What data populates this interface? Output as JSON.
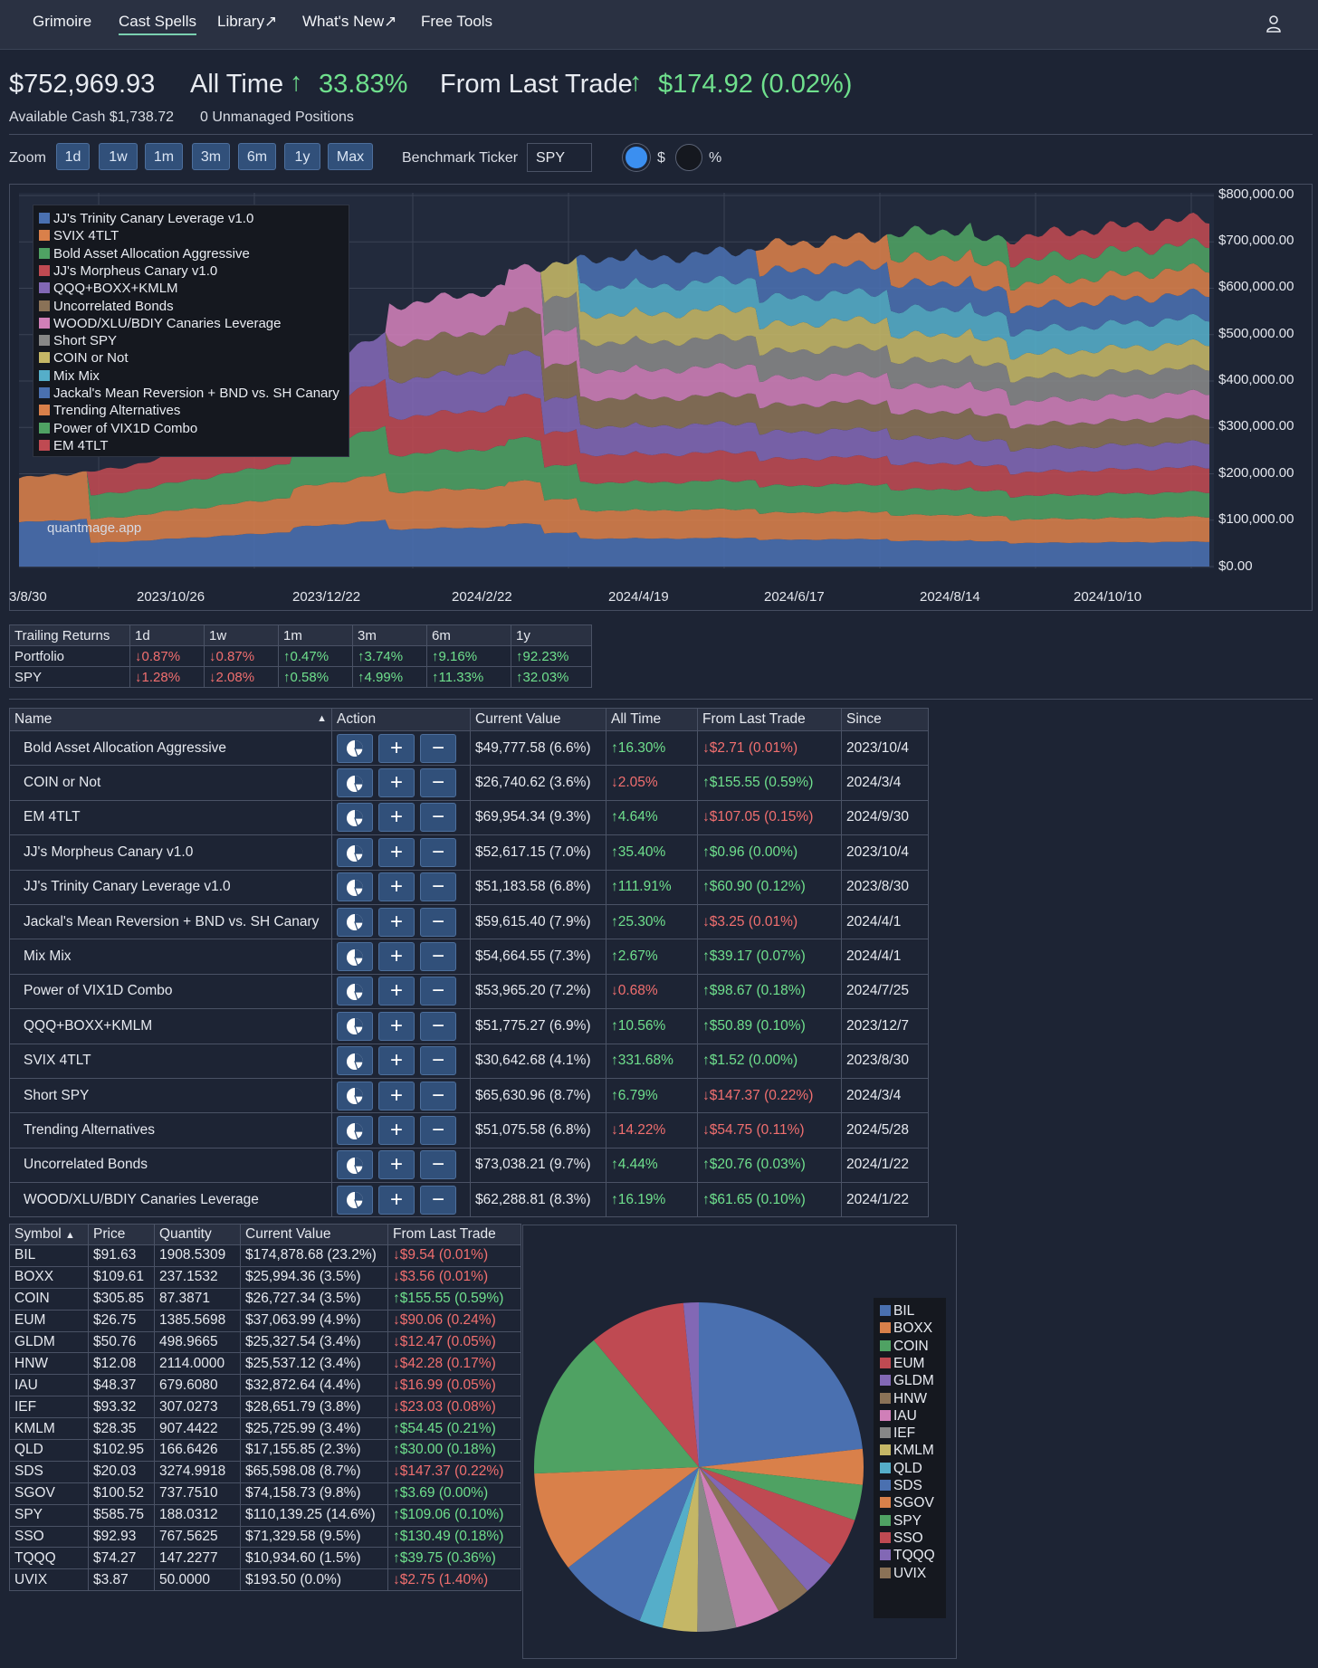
{
  "nav": {
    "brand": "Grimoire",
    "items": [
      "Cast Spells",
      "Library↗",
      "What's New↗",
      "Free Tools"
    ]
  },
  "summary": {
    "total_value": "$752,969.93",
    "all_time_label": "All Time",
    "all_time_value": "33.83%",
    "last_trade_label": "From Last Trade",
    "last_trade_value": "$174.92 (0.02%)",
    "available_cash": "Available Cash $1,738.72",
    "unmanaged": "0 Unmanaged Positions"
  },
  "controls": {
    "zoom_label": "Zoom",
    "zoom_options": [
      "1d",
      "1w",
      "1m",
      "3m",
      "6m",
      "1y",
      "Max"
    ],
    "benchmark_label": "Benchmark Ticker",
    "benchmark_value": "SPY",
    "radio_dollar": "$",
    "radio_percent": "%"
  },
  "chart_data": {
    "type": "area",
    "stacked": true,
    "watermark": "quantmage.app",
    "y_ticks": [
      "$800,000.00",
      "$700,000.00",
      "$600,000.00",
      "$500,000.00",
      "$400,000.00",
      "$300,000.00",
      "$200,000.00",
      "$100,000.00",
      "$0.00"
    ],
    "x_ticks": [
      "3/8/30",
      "2023/10/26",
      "2023/12/22",
      "2024/2/22",
      "2024/4/19",
      "2024/6/17",
      "2024/8/14",
      "2024/10/10"
    ],
    "ylim": [
      0,
      800000
    ],
    "legend_position": "top-left",
    "series": [
      {
        "name": "JJ's Trinity Canary Leverage v1.0",
        "color": "#4a70b0"
      },
      {
        "name": "SVIX 4TLT",
        "color": "#d9804a"
      },
      {
        "name": "Bold Asset Allocation Aggressive",
        "color": "#4fa263"
      },
      {
        "name": "JJ's Morpheus Canary v1.0",
        "color": "#bf4a52"
      },
      {
        "name": "QQQ+BOXX+KMLM",
        "color": "#8268b5"
      },
      {
        "name": "Uncorrelated Bonds",
        "color": "#8a7257"
      },
      {
        "name": "WOOD/XLU/BDIY Canaries Leverage",
        "color": "#d07fb8"
      },
      {
        "name": "Short SPY",
        "color": "#878787"
      },
      {
        "name": "COIN or Not",
        "color": "#c5b766"
      },
      {
        "name": "Mix Mix",
        "color": "#55aec9"
      },
      {
        "name": "Jackal's Mean Reversion + BND vs. SH Canary",
        "color": "#4a70b0"
      },
      {
        "name": "Trending Alternatives",
        "color": "#d9804a"
      },
      {
        "name": "Power of VIX1D Combo",
        "color": "#4fa263"
      },
      {
        "name": "EM 4TLT",
        "color": "#bf4a52"
      }
    ]
  },
  "trailing": {
    "headers": [
      "Trailing Returns",
      "1d",
      "1w",
      "1m",
      "3m",
      "6m",
      "1y"
    ],
    "rows": [
      {
        "label": "Portfolio",
        "cells": [
          {
            "v": "0.87%",
            "d": "down"
          },
          {
            "v": "0.87%",
            "d": "down"
          },
          {
            "v": "0.47%",
            "d": "up"
          },
          {
            "v": "3.74%",
            "d": "up"
          },
          {
            "v": "9.16%",
            "d": "up"
          },
          {
            "v": "92.23%",
            "d": "up"
          }
        ]
      },
      {
        "label": "SPY",
        "cells": [
          {
            "v": "1.28%",
            "d": "down"
          },
          {
            "v": "2.08%",
            "d": "down"
          },
          {
            "v": "0.58%",
            "d": "up"
          },
          {
            "v": "4.99%",
            "d": "up"
          },
          {
            "v": "11.33%",
            "d": "up"
          },
          {
            "v": "32.03%",
            "d": "up"
          }
        ]
      }
    ]
  },
  "positions": {
    "headers": [
      "Name",
      "Action",
      "Current Value",
      "All Time",
      "From Last Trade",
      "Since"
    ],
    "sort_indicator": "▲",
    "rows": [
      {
        "name": "Bold Asset Allocation Aggressive",
        "value": "$49,777.58 (6.6%)",
        "all_time": "16.30%",
        "at_dir": "up",
        "last": "$2.71 (0.01%)",
        "lt_dir": "down",
        "since": "2023/10/4"
      },
      {
        "name": "COIN or Not",
        "value": "$26,740.62 (3.6%)",
        "all_time": "2.05%",
        "at_dir": "down",
        "last": "$155.55 (0.59%)",
        "lt_dir": "up",
        "since": "2024/3/4"
      },
      {
        "name": "EM 4TLT",
        "value": "$69,954.34 (9.3%)",
        "all_time": "4.64%",
        "at_dir": "up",
        "last": "$107.05 (0.15%)",
        "lt_dir": "down",
        "since": "2024/9/30"
      },
      {
        "name": "JJ's Morpheus Canary v1.0",
        "value": "$52,617.15 (7.0%)",
        "all_time": "35.40%",
        "at_dir": "up",
        "last": "$0.96 (0.00%)",
        "lt_dir": "up",
        "since": "2023/10/4"
      },
      {
        "name": "JJ's Trinity Canary Leverage v1.0",
        "value": "$51,183.58 (6.8%)",
        "all_time": "111.91%",
        "at_dir": "up",
        "last": "$60.90 (0.12%)",
        "lt_dir": "up",
        "since": "2023/8/30"
      },
      {
        "name": "Jackal's Mean Reversion + BND vs. SH Canary",
        "value": "$59,615.40 (7.9%)",
        "all_time": "25.30%",
        "at_dir": "up",
        "last": "$3.25 (0.01%)",
        "lt_dir": "down",
        "since": "2024/4/1"
      },
      {
        "name": "Mix Mix",
        "value": "$54,664.55 (7.3%)",
        "all_time": "2.67%",
        "at_dir": "up",
        "last": "$39.17 (0.07%)",
        "lt_dir": "up",
        "since": "2024/4/1"
      },
      {
        "name": "Power of VIX1D Combo",
        "value": "$53,965.20 (7.2%)",
        "all_time": "0.68%",
        "at_dir": "down",
        "last": "$98.67 (0.18%)",
        "lt_dir": "up",
        "since": "2024/7/25"
      },
      {
        "name": "QQQ+BOXX+KMLM",
        "value": "$51,775.27 (6.9%)",
        "all_time": "10.56%",
        "at_dir": "up",
        "last": "$50.89 (0.10%)",
        "lt_dir": "up",
        "since": "2023/12/7"
      },
      {
        "name": "SVIX 4TLT",
        "value": "$30,642.68 (4.1%)",
        "all_time": "331.68%",
        "at_dir": "up",
        "last": "$1.52 (0.00%)",
        "lt_dir": "up",
        "since": "2023/8/30"
      },
      {
        "name": "Short SPY",
        "value": "$65,630.96 (8.7%)",
        "all_time": "6.79%",
        "at_dir": "up",
        "last": "$147.37 (0.22%)",
        "lt_dir": "down",
        "since": "2024/3/4"
      },
      {
        "name": "Trending Alternatives",
        "value": "$51,075.58 (6.8%)",
        "all_time": "14.22%",
        "at_dir": "down",
        "last": "$54.75 (0.11%)",
        "lt_dir": "down",
        "since": "2024/5/28"
      },
      {
        "name": "Uncorrelated Bonds",
        "value": "$73,038.21 (9.7%)",
        "all_time": "4.44%",
        "at_dir": "up",
        "last": "$20.76 (0.03%)",
        "lt_dir": "up",
        "since": "2024/1/22"
      },
      {
        "name": "WOOD/XLU/BDIY Canaries Leverage",
        "value": "$62,288.81 (8.3%)",
        "all_time": "16.19%",
        "at_dir": "up",
        "last": "$61.65 (0.10%)",
        "lt_dir": "up",
        "since": "2024/1/22"
      }
    ]
  },
  "symbols": {
    "headers": [
      "Symbol",
      "Price",
      "Quantity",
      "Current Value",
      "From Last Trade"
    ],
    "sort_indicator": "▲",
    "rows": [
      {
        "sym": "BIL",
        "price": "$91.63",
        "qty": "1908.5309",
        "value": "$174,878.68 (23.2%)",
        "last": "$9.54 (0.01%)",
        "dir": "down"
      },
      {
        "sym": "BOXX",
        "price": "$109.61",
        "qty": "237.1532",
        "value": "$25,994.36 (3.5%)",
        "last": "$3.56 (0.01%)",
        "dir": "down"
      },
      {
        "sym": "COIN",
        "price": "$305.85",
        "qty": "87.3871",
        "value": "$26,727.34 (3.5%)",
        "last": "$155.55 (0.59%)",
        "dir": "up"
      },
      {
        "sym": "EUM",
        "price": "$26.75",
        "qty": "1385.5698",
        "value": "$37,063.99 (4.9%)",
        "last": "$90.06 (0.24%)",
        "dir": "down"
      },
      {
        "sym": "GLDM",
        "price": "$50.76",
        "qty": "498.9665",
        "value": "$25,327.54 (3.4%)",
        "last": "$12.47 (0.05%)",
        "dir": "down"
      },
      {
        "sym": "HNW",
        "price": "$12.08",
        "qty": "2114.0000",
        "value": "$25,537.12 (3.4%)",
        "last": "$42.28 (0.17%)",
        "dir": "down"
      },
      {
        "sym": "IAU",
        "price": "$48.37",
        "qty": "679.6080",
        "value": "$32,872.64 (4.4%)",
        "last": "$16.99 (0.05%)",
        "dir": "down"
      },
      {
        "sym": "IEF",
        "price": "$93.32",
        "qty": "307.0273",
        "value": "$28,651.79 (3.8%)",
        "last": "$23.03 (0.08%)",
        "dir": "down"
      },
      {
        "sym": "KMLM",
        "price": "$28.35",
        "qty": "907.4422",
        "value": "$25,725.99 (3.4%)",
        "last": "$54.45 (0.21%)",
        "dir": "up"
      },
      {
        "sym": "QLD",
        "price": "$102.95",
        "qty": "166.6426",
        "value": "$17,155.85 (2.3%)",
        "last": "$30.00 (0.18%)",
        "dir": "up"
      },
      {
        "sym": "SDS",
        "price": "$20.03",
        "qty": "3274.9918",
        "value": "$65,598.08 (8.7%)",
        "last": "$147.37 (0.22%)",
        "dir": "down"
      },
      {
        "sym": "SGOV",
        "price": "$100.52",
        "qty": "737.7510",
        "value": "$74,158.73 (9.8%)",
        "last": "$3.69 (0.00%)",
        "dir": "up"
      },
      {
        "sym": "SPY",
        "price": "$585.75",
        "qty": "188.0312",
        "value": "$110,139.25 (14.6%)",
        "last": "$109.06 (0.10%)",
        "dir": "up"
      },
      {
        "sym": "SSO",
        "price": "$92.93",
        "qty": "767.5625",
        "value": "$71,329.58 (9.5%)",
        "last": "$130.49 (0.18%)",
        "dir": "up"
      },
      {
        "sym": "TQQQ",
        "price": "$74.27",
        "qty": "147.2277",
        "value": "$10,934.60 (1.5%)",
        "last": "$39.75 (0.36%)",
        "dir": "up"
      },
      {
        "sym": "UVIX",
        "price": "$3.87",
        "qty": "50.0000",
        "value": "$193.50 (0.0%)",
        "last": "$2.75 (1.40%)",
        "dir": "down"
      }
    ]
  },
  "pie": {
    "slices": [
      {
        "label": "BIL",
        "value": 23.2,
        "color": "#4a70b0"
      },
      {
        "label": "BOXX",
        "value": 3.5,
        "color": "#d9804a"
      },
      {
        "label": "COIN",
        "value": 3.5,
        "color": "#4fa263"
      },
      {
        "label": "EUM",
        "value": 4.9,
        "color": "#bf4a52"
      },
      {
        "label": "GLDM",
        "value": 3.4,
        "color": "#8268b5"
      },
      {
        "label": "HNW",
        "value": 3.4,
        "color": "#8a7257"
      },
      {
        "label": "IAU",
        "value": 4.4,
        "color": "#d07fb8"
      },
      {
        "label": "IEF",
        "value": 3.8,
        "color": "#878787"
      },
      {
        "label": "KMLM",
        "value": 3.4,
        "color": "#c5b766"
      },
      {
        "label": "QLD",
        "value": 2.3,
        "color": "#55aec9"
      },
      {
        "label": "SDS",
        "value": 8.7,
        "color": "#4a70b0"
      },
      {
        "label": "SGOV",
        "value": 9.8,
        "color": "#d9804a"
      },
      {
        "label": "SPY",
        "value": 14.6,
        "color": "#4fa263"
      },
      {
        "label": "SSO",
        "value": 9.5,
        "color": "#bf4a52"
      },
      {
        "label": "TQQQ",
        "value": 1.5,
        "color": "#8268b5"
      },
      {
        "label": "UVIX",
        "value": 0.0,
        "color": "#8a7257"
      }
    ]
  },
  "colors": {
    "up": "#6fe08d",
    "down": "#f16f6f",
    "accent": "#31507a"
  }
}
